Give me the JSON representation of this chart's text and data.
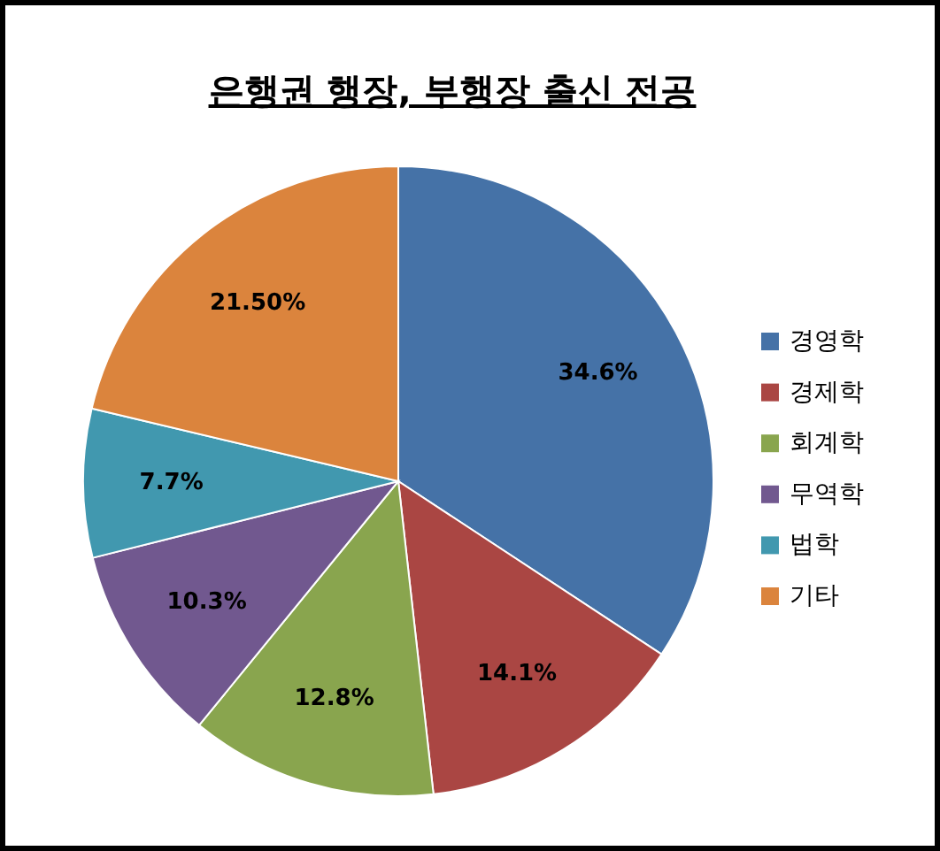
{
  "chart_data": {
    "type": "pie",
    "title": "은행권 행장, 부행장 출신 전공",
    "categories": [
      "경영학",
      "경제학",
      "회계학",
      "무역학",
      "법학",
      "기타"
    ],
    "values": [
      34.6,
      14.1,
      12.8,
      10.3,
      7.7,
      21.5
    ],
    "colors": [
      "#4572a7",
      "#aa4643",
      "#89a54e",
      "#71588f",
      "#4198af",
      "#db843d"
    ],
    "value_labels": [
      "34.6%",
      "14.1%",
      "12.8%",
      "10.3%",
      "7.7%",
      "21.50%"
    ],
    "legend": "right"
  }
}
